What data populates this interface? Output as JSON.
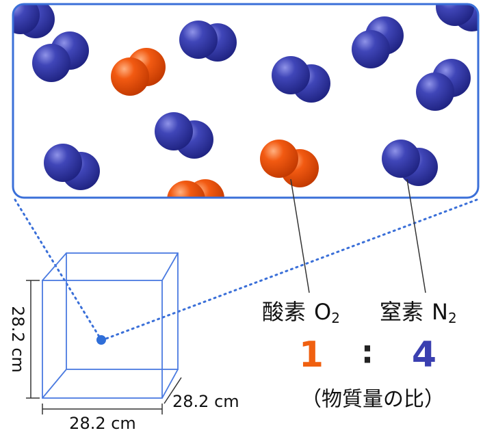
{
  "gases": [
    {
      "name": "酸素",
      "formula": "O",
      "subscript": "2",
      "ratio": 1
    },
    {
      "name": "窒素",
      "formula": "N",
      "subscript": "2",
      "ratio": 4
    }
  ],
  "ratio_separator": ":",
  "ratio_caption": "（物質量の比）",
  "dimensions": {
    "height": "28.2 cm",
    "depth": "28.2 cm",
    "width": "28.2 cm"
  }
}
